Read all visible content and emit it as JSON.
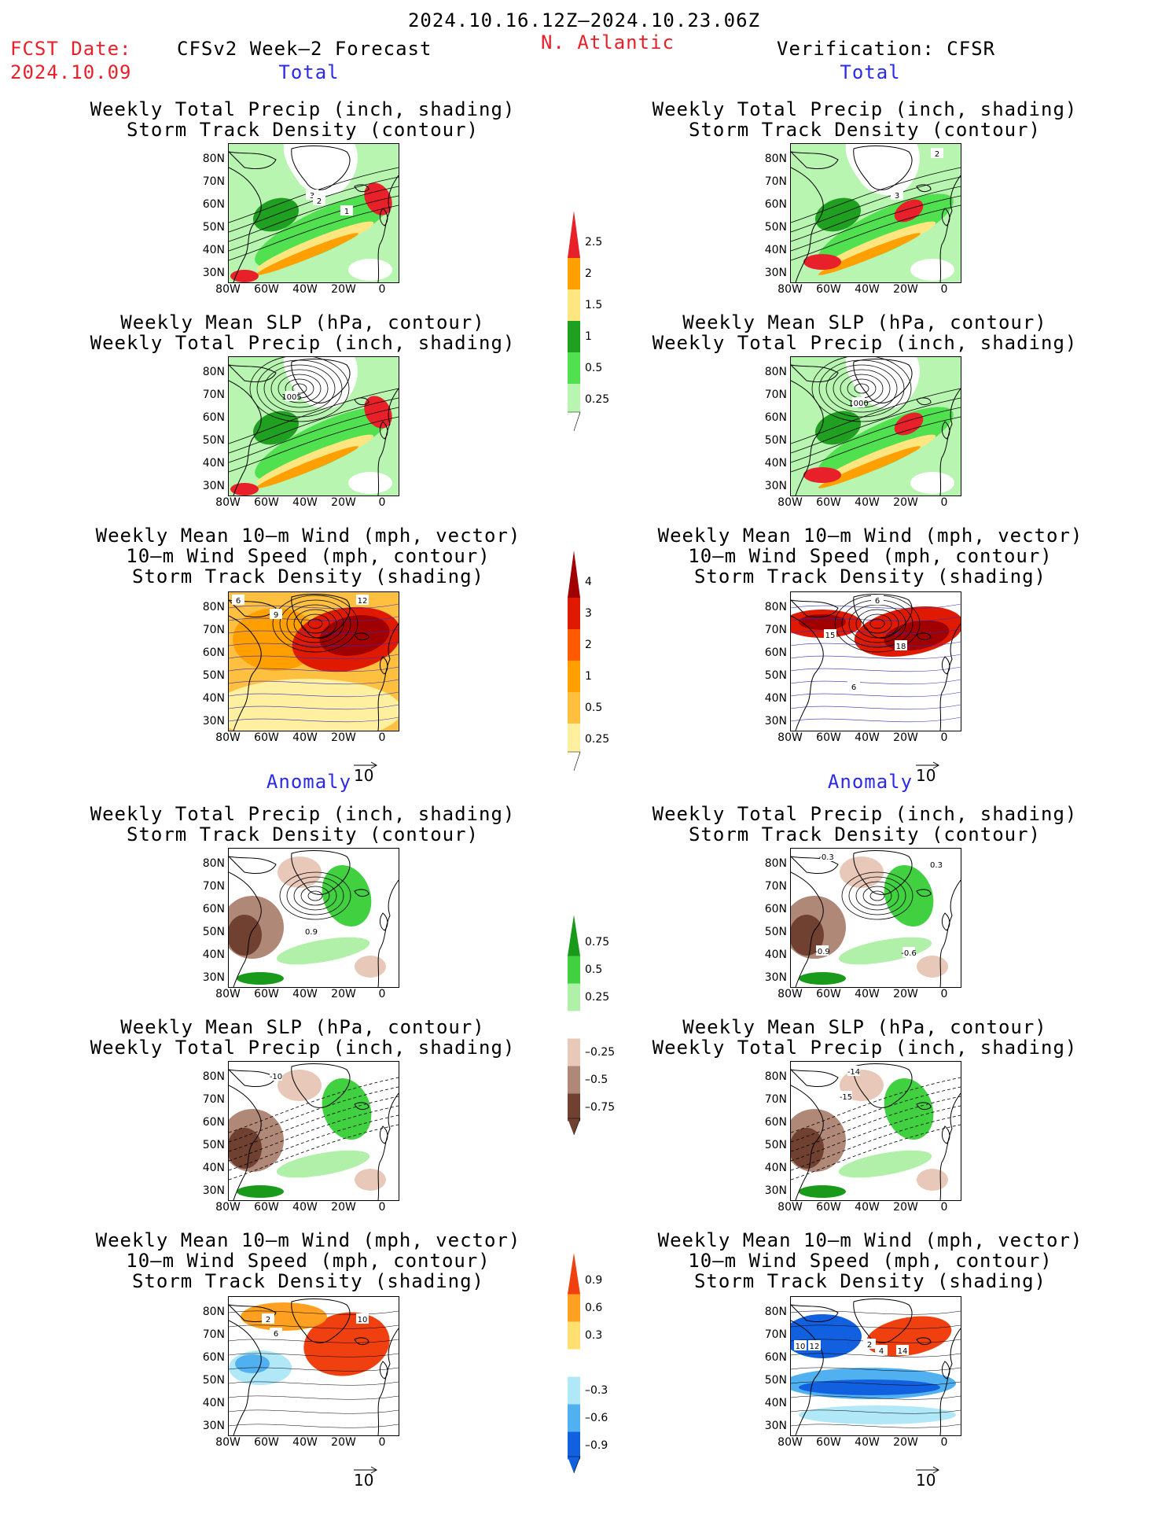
{
  "header": {
    "period": "2024.10.16.12Z–2024.10.23.06Z",
    "fcst_label": "FCST Date:",
    "fcst_date": "2024.10.09",
    "model": "CFSv2 Week–2 Forecast",
    "region": "N. Atlantic",
    "verification": "Verification: CFSR"
  },
  "sections": {
    "total": "Total",
    "anomaly": "Anomaly"
  },
  "titles": {
    "precip_track": [
      "Weekly Total Precip (inch, shading)",
      "Storm Track Density (contour)"
    ],
    "slp_precip": [
      "Weekly Mean SLP (hPa, contour)",
      "Weekly Total Precip (inch, shading)"
    ],
    "wind_track": [
      "Weekly Mean 10–m Wind (mph, vector)",
      "10–m Wind Speed (mph, contour)",
      "Storm Track Density (shading)"
    ]
  },
  "axes": {
    "lat": [
      "80N",
      "70N",
      "60N",
      "50N",
      "40N",
      "30N"
    ],
    "lon": [
      "80W",
      "60W",
      "40W",
      "20W",
      "0"
    ]
  },
  "vector_ref": "10",
  "colorbars": {
    "precip_total": {
      "labels": [
        "2.5",
        "2",
        "1.5",
        "1",
        "0.5",
        "0.25"
      ],
      "colors": [
        "#e8202a",
        "#ffa000",
        "#ffe680",
        "#20a020",
        "#50e050",
        "#b8f5b0"
      ]
    },
    "track_total": {
      "labels": [
        "4",
        "3",
        "2",
        "1",
        "0.5",
        "0.25"
      ],
      "colors": [
        "#a00000",
        "#e01a00",
        "#ff5a00",
        "#ffa000",
        "#ffc040",
        "#fff0a0"
      ]
    },
    "precip_anom": {
      "labels": [
        "0.75",
        "0.5",
        "0.25",
        "–0.25",
        "–0.5",
        "–0.75"
      ],
      "colors": [
        "#1a9a1a",
        "#40d040",
        "#b0f0a8",
        "#ffffff",
        "#e8c8b8",
        "#b08878",
        "#704030"
      ]
    },
    "track_anom": {
      "labels": [
        "0.9",
        "0.6",
        "0.3",
        "–0.3",
        "–0.6",
        "–0.9"
      ],
      "colors": [
        "#f04010",
        "#ffa020",
        "#ffe070",
        "#ffffff",
        "#b0e8f8",
        "#50b0f0",
        "#1060e0"
      ]
    }
  },
  "panels": {
    "L1": {
      "labels": [
        "3",
        "2",
        "1"
      ]
    },
    "R1": {
      "labels": [
        "2",
        "3"
      ]
    },
    "L2": {
      "labels": [
        "1005"
      ]
    },
    "R2": {
      "labels": [
        "1000"
      ]
    },
    "L3": {
      "labels": [
        "6",
        "9",
        "12"
      ]
    },
    "R3": {
      "labels": [
        "6",
        "15",
        "18",
        "6"
      ]
    },
    "L4": {
      "labels": [
        "0.9"
      ]
    },
    "R4": {
      "labels": [
        "-0.3",
        "0.3",
        "-0.9",
        "-0.6"
      ]
    },
    "L5": {
      "labels": [
        "-10"
      ]
    },
    "R5": {
      "labels": [
        "-14",
        "-15"
      ]
    },
    "L6": {
      "labels": [
        "2",
        "6",
        "10"
      ]
    },
    "R6": {
      "labels": [
        "10",
        "12",
        "2",
        "4",
        "14"
      ]
    }
  }
}
